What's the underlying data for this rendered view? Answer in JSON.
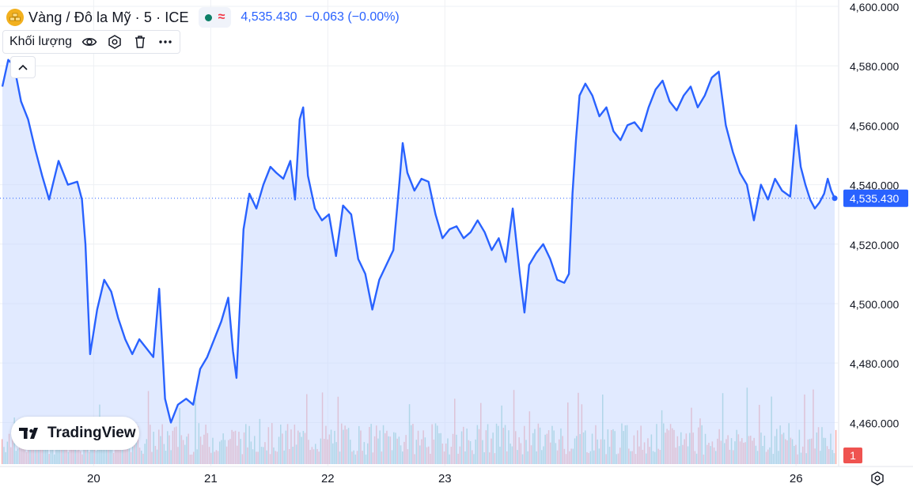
{
  "header": {
    "symbol_title": "Vàng / Đô la Mỹ · 5 · ICE",
    "approx_symbol": "≈",
    "last_price": "4,535.430",
    "change": "−0.063 (−0.00%)",
    "icons": [
      "gold-bars-icon",
      "market-status-dot-icon"
    ]
  },
  "volume_panel": {
    "label": "Khối lượng",
    "icons": [
      "eye-icon",
      "settings-icon",
      "trash-icon",
      "more-icon"
    ]
  },
  "logo_text": "TradingView",
  "volume_badge": "1",
  "colors": {
    "line": "#2962ff",
    "area": "#c9d8ff",
    "volume_up": "#26a69a",
    "volume_down": "#ef5350",
    "badge": "#ef5350",
    "grid": "#eef0f4",
    "price_tag": "#2962ff"
  },
  "chart_data": {
    "type": "area",
    "title": "Vàng / Đô la Mỹ · 5 · ICE",
    "xlabel": "",
    "ylabel": "",
    "x_ticks": [
      "20",
      "21",
      "22",
      "23",
      "26"
    ],
    "y_ticks": [
      "4,600.000",
      "4,580.000",
      "4,560.000",
      "4,540.000",
      "4,520.000",
      "4,500.000",
      "4,480.000",
      "4,460.000"
    ],
    "ylim": [
      4446,
      4600
    ],
    "last_price_label": "4,535.430",
    "last_value": 4535.43,
    "grid": true,
    "x_range": [
      19.2,
      26.35
    ],
    "series": [
      {
        "values": [
          [
            19.22,
            4573
          ],
          [
            19.27,
            4582
          ],
          [
            19.32,
            4580
          ],
          [
            19.38,
            4568
          ],
          [
            19.44,
            4562
          ],
          [
            19.5,
            4552
          ],
          [
            19.56,
            4543
          ],
          [
            19.62,
            4535
          ],
          [
            19.7,
            4548
          ],
          [
            19.78,
            4540
          ],
          [
            19.86,
            4541
          ],
          [
            19.9,
            4535
          ],
          [
            19.93,
            4520
          ],
          [
            19.97,
            4483
          ],
          [
            20.03,
            4498
          ],
          [
            20.09,
            4508
          ],
          [
            20.15,
            4504
          ],
          [
            20.21,
            4495
          ],
          [
            20.27,
            4488
          ],
          [
            20.33,
            4483
          ],
          [
            20.39,
            4488
          ],
          [
            20.45,
            4485
          ],
          [
            20.51,
            4482
          ],
          [
            20.56,
            4505
          ],
          [
            20.61,
            4468
          ],
          [
            20.66,
            4460
          ],
          [
            20.72,
            4466
          ],
          [
            20.79,
            4468
          ],
          [
            20.85,
            4466
          ],
          [
            20.91,
            4478
          ],
          [
            20.97,
            4482
          ],
          [
            21.03,
            4488
          ],
          [
            21.09,
            4494
          ],
          [
            21.15,
            4502
          ],
          [
            21.19,
            4484
          ],
          [
            21.22,
            4475
          ],
          [
            21.28,
            4525
          ],
          [
            21.33,
            4537
          ],
          [
            21.39,
            4532
          ],
          [
            21.45,
            4540
          ],
          [
            21.51,
            4546
          ],
          [
            21.56,
            4544
          ],
          [
            21.62,
            4542
          ],
          [
            21.68,
            4548
          ],
          [
            21.72,
            4535
          ],
          [
            21.76,
            4562
          ],
          [
            21.79,
            4566
          ],
          [
            21.83,
            4543
          ],
          [
            21.89,
            4532
          ],
          [
            21.95,
            4528
          ],
          [
            22.01,
            4530
          ],
          [
            22.07,
            4516
          ],
          [
            22.13,
            4533
          ],
          [
            22.2,
            4530
          ],
          [
            22.26,
            4515
          ],
          [
            22.32,
            4510
          ],
          [
            22.38,
            4498
          ],
          [
            22.44,
            4508
          ],
          [
            22.5,
            4513
          ],
          [
            22.56,
            4518
          ],
          [
            22.61,
            4540
          ],
          [
            22.64,
            4554
          ],
          [
            22.68,
            4544
          ],
          [
            22.74,
            4538
          ],
          [
            22.8,
            4542
          ],
          [
            22.86,
            4541
          ],
          [
            22.92,
            4530
          ],
          [
            22.98,
            4522
          ],
          [
            23.04,
            4525
          ],
          [
            23.1,
            4526
          ],
          [
            23.16,
            4522
          ],
          [
            23.22,
            4524
          ],
          [
            23.28,
            4528
          ],
          [
            23.34,
            4524
          ],
          [
            23.4,
            4518
          ],
          [
            23.46,
            4522
          ],
          [
            23.52,
            4514
          ],
          [
            23.58,
            4532
          ],
          [
            23.64,
            4510
          ],
          [
            23.68,
            4497
          ],
          [
            23.72,
            4513
          ],
          [
            23.78,
            4517
          ],
          [
            23.84,
            4520
          ],
          [
            23.9,
            4515
          ],
          [
            23.96,
            4508
          ],
          [
            24.02,
            4507
          ],
          [
            24.06,
            4510
          ],
          [
            24.09,
            4537
          ],
          [
            24.12,
            4555
          ],
          [
            24.15,
            4570
          ],
          [
            24.2,
            4574
          ],
          [
            24.26,
            4570
          ],
          [
            24.32,
            4563
          ],
          [
            24.38,
            4566
          ],
          [
            24.44,
            4558
          ],
          [
            24.5,
            4555
          ],
          [
            24.56,
            4560
          ],
          [
            24.62,
            4561
          ],
          [
            24.68,
            4558
          ],
          [
            24.74,
            4566
          ],
          [
            24.8,
            4572
          ],
          [
            24.86,
            4575
          ],
          [
            24.92,
            4568
          ],
          [
            24.98,
            4565
          ],
          [
            25.04,
            4570
          ],
          [
            25.1,
            4573
          ],
          [
            25.16,
            4566
          ],
          [
            25.22,
            4570
          ],
          [
            25.28,
            4576
          ],
          [
            25.34,
            4578
          ],
          [
            25.4,
            4560
          ],
          [
            25.46,
            4551
          ],
          [
            25.52,
            4544
          ],
          [
            25.58,
            4540
          ],
          [
            25.64,
            4528
          ],
          [
            25.7,
            4540
          ],
          [
            25.76,
            4535
          ],
          [
            25.82,
            4542
          ],
          [
            25.88,
            4538
          ],
          [
            25.95,
            4536
          ],
          [
            26.0,
            4560
          ],
          [
            26.04,
            4546
          ],
          [
            26.08,
            4540
          ],
          [
            26.12,
            4535
          ],
          [
            26.16,
            4532
          ],
          [
            26.2,
            4534
          ],
          [
            26.24,
            4537
          ],
          [
            26.27,
            4542
          ],
          [
            26.3,
            4538
          ],
          [
            26.33,
            4535.43
          ]
        ]
      }
    ]
  }
}
